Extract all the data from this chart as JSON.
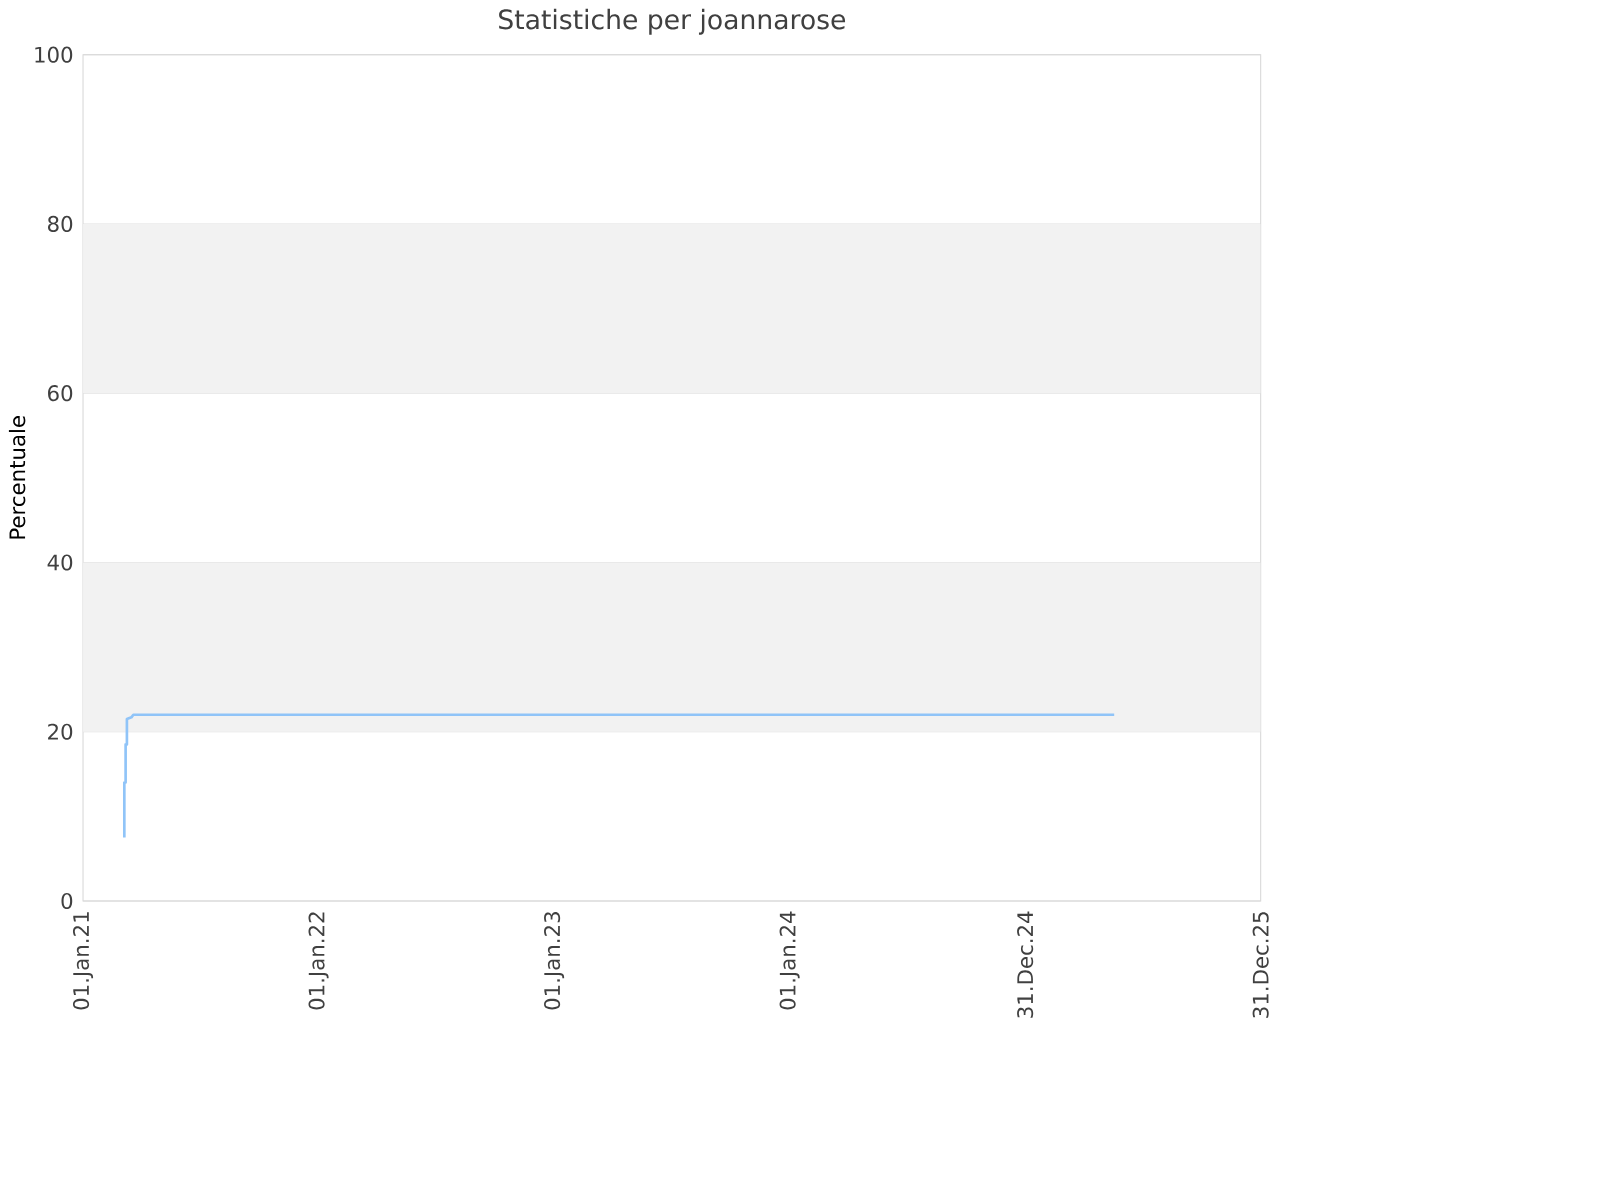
{
  "chart_data": {
    "type": "line",
    "title": "Statistiche per joannarose",
    "ylabel": "Percentuale",
    "x": [
      "2021-03-06",
      "2021-03-06",
      "2021-03-08",
      "2021-03-08",
      "2021-03-10",
      "2021-03-10",
      "2021-03-17",
      "2021-03-20",
      "2025-05-18"
    ],
    "series": [
      {
        "color": "#90c4f8",
        "values": [
          7.5,
          14,
          14,
          18.5,
          18.5,
          21.5,
          21.7,
          22,
          22
        ]
      }
    ],
    "xlim": [
      "2021-01-01",
      "2025-12-31"
    ],
    "xticks": [
      {
        "value": "2021-01-01",
        "label": "01.Jan.21"
      },
      {
        "value": "2022-01-01",
        "label": "01.Jan.22"
      },
      {
        "value": "2023-01-01",
        "label": "01.Jan.23"
      },
      {
        "value": "2024-01-01",
        "label": "01.Jan.24"
      },
      {
        "value": "2024-12-31",
        "label": "31.Dec.24"
      },
      {
        "value": "2025-12-31",
        "label": "31.Dec.25"
      }
    ],
    "ylim": [
      0,
      100
    ],
    "yticks": [
      0,
      20,
      40,
      60,
      80,
      100
    ],
    "bands": [
      {
        "axis": "y",
        "from": 20,
        "to": 40,
        "color": "#f2f2f2"
      },
      {
        "axis": "y",
        "from": 60,
        "to": 80,
        "color": "#f2f2f2"
      }
    ],
    "grid": "y",
    "marker": "none",
    "line_style": "solid"
  }
}
